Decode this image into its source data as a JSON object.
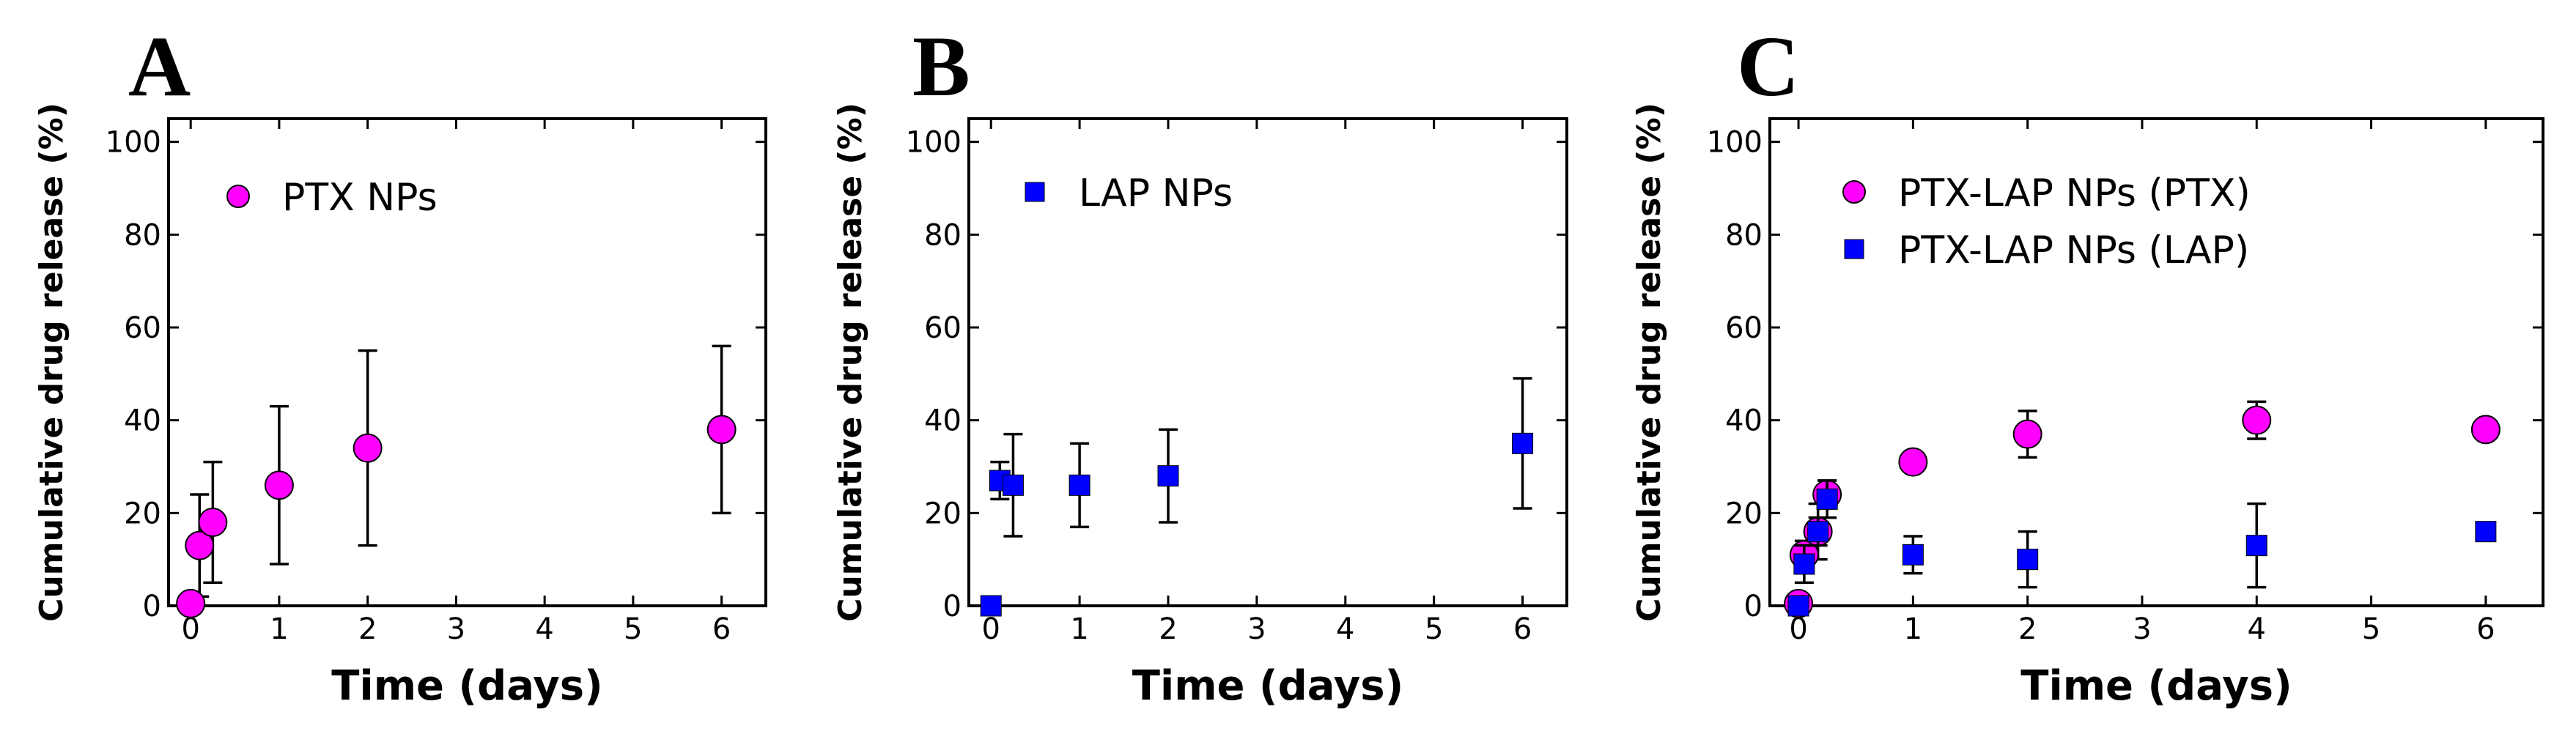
{
  "chart_data": [
    {
      "type": "scatter",
      "panel": "A",
      "xlabel": "Time (days)",
      "ylabel": "Cumulative drug release (%)",
      "xlim": [
        -0.25,
        6.5
      ],
      "ylim": [
        0,
        105
      ],
      "xticks": [
        0,
        1,
        2,
        3,
        4,
        5,
        6
      ],
      "yticks": [
        0,
        20,
        40,
        60,
        80,
        100
      ],
      "series": [
        {
          "name": "PTX NPs",
          "marker": "circle",
          "color": "#ff00ff",
          "points": [
            {
              "x": 0,
              "y": 0.5,
              "err": 0
            },
            {
              "x": 0.1,
              "y": 13,
              "err": 11
            },
            {
              "x": 0.25,
              "y": 18,
              "err": 13
            },
            {
              "x": 1,
              "y": 26,
              "err": 17
            },
            {
              "x": 2,
              "y": 34,
              "err": 21
            },
            {
              "x": 6,
              "y": 38,
              "err": 18
            }
          ]
        }
      ]
    },
    {
      "type": "scatter",
      "panel": "B",
      "xlabel": "Time (days)",
      "ylabel": "Cumulative drug release (%)",
      "xlim": [
        -0.25,
        6.5
      ],
      "ylim": [
        0,
        105
      ],
      "xticks": [
        0,
        1,
        2,
        3,
        4,
        5,
        6
      ],
      "yticks": [
        0,
        20,
        40,
        60,
        80,
        100
      ],
      "series": [
        {
          "name": "LAP NPs",
          "marker": "square",
          "color": "#0000ff",
          "points": [
            {
              "x": 0,
              "y": 0,
              "err": 0
            },
            {
              "x": 0.1,
              "y": 27,
              "err": 4
            },
            {
              "x": 0.25,
              "y": 26,
              "err": 11
            },
            {
              "x": 1,
              "y": 26,
              "err": 9
            },
            {
              "x": 2,
              "y": 28,
              "err": 10
            },
            {
              "x": 6,
              "y": 35,
              "err": 14
            }
          ]
        }
      ]
    },
    {
      "type": "scatter",
      "panel": "C",
      "xlabel": "Time (days)",
      "ylabel": "Cumulative drug release (%)",
      "xlim": [
        -0.25,
        6.5
      ],
      "ylim": [
        0,
        105
      ],
      "xticks": [
        0,
        1,
        2,
        3,
        4,
        5,
        6
      ],
      "yticks": [
        0,
        20,
        40,
        60,
        80,
        100
      ],
      "series": [
        {
          "name": "PTX-LAP NPs (PTX)",
          "marker": "circle",
          "color": "#ff00ff",
          "points": [
            {
              "x": 0,
              "y": 0.5,
              "err": 0
            },
            {
              "x": 0.05,
              "y": 11,
              "err": 3
            },
            {
              "x": 0.17,
              "y": 16,
              "err": 6
            },
            {
              "x": 0.25,
              "y": 24,
              "err": 3
            },
            {
              "x": 1,
              "y": 31,
              "err": 2
            },
            {
              "x": 2,
              "y": 37,
              "err": 5
            },
            {
              "x": 4,
              "y": 40,
              "err": 4
            },
            {
              "x": 6,
              "y": 38,
              "err": 2
            }
          ]
        },
        {
          "name": "PTX-LAP NPs (LAP)",
          "marker": "square",
          "color": "#0000ff",
          "points": [
            {
              "x": 0,
              "y": 0,
              "err": 0
            },
            {
              "x": 0.05,
              "y": 9,
              "err": 4
            },
            {
              "x": 0.17,
              "y": 16,
              "err": 3
            },
            {
              "x": 0.25,
              "y": 23,
              "err": 4
            },
            {
              "x": 1,
              "y": 11,
              "err": 4
            },
            {
              "x": 2,
              "y": 10,
              "err": 6
            },
            {
              "x": 4,
              "y": 13,
              "err": 9
            },
            {
              "x": 6,
              "y": 16,
              "err": 1
            }
          ]
        }
      ]
    }
  ]
}
